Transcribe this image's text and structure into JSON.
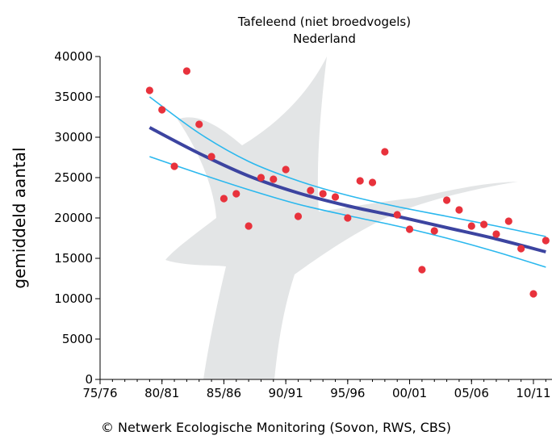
{
  "chart_data": {
    "type": "scatter",
    "title": "Tafeleend (niet broedvogels)",
    "subtitle": "Nederland",
    "ylabel": "gemiddeld aantal",
    "xlabel": "",
    "ylim": [
      0,
      40000
    ],
    "yticks": [
      0,
      5000,
      10000,
      15000,
      20000,
      25000,
      30000,
      35000,
      40000
    ],
    "xlim": [
      1975,
      2011.5
    ],
    "xticks": [
      {
        "value": 1975,
        "label": "75/76"
      },
      {
        "value": 1980,
        "label": "80/81"
      },
      {
        "value": 1985,
        "label": "85/86"
      },
      {
        "value": 1990,
        "label": "90/91"
      },
      {
        "value": 1995,
        "label": "95/96"
      },
      {
        "value": 2000,
        "label": "00/01"
      },
      {
        "value": 2005,
        "label": "05/06"
      },
      {
        "value": 2010,
        "label": "10/11"
      }
    ],
    "points": [
      {
        "x": 1979,
        "y": 35800
      },
      {
        "x": 1980,
        "y": 33400
      },
      {
        "x": 1981,
        "y": 26400
      },
      {
        "x": 1982,
        "y": 38200
      },
      {
        "x": 1983,
        "y": 31600
      },
      {
        "x": 1984,
        "y": 27600
      },
      {
        "x": 1985,
        "y": 22400
      },
      {
        "x": 1986,
        "y": 23000
      },
      {
        "x": 1987,
        "y": 19000
      },
      {
        "x": 1988,
        "y": 25000
      },
      {
        "x": 1989,
        "y": 24800
      },
      {
        "x": 1990,
        "y": 26000
      },
      {
        "x": 1991,
        "y": 20200
      },
      {
        "x": 1992,
        "y": 23400
      },
      {
        "x": 1993,
        "y": 23000
      },
      {
        "x": 1994,
        "y": 22600
      },
      {
        "x": 1995,
        "y": 20000
      },
      {
        "x": 1996,
        "y": 24600
      },
      {
        "x": 1997,
        "y": 24400
      },
      {
        "x": 1998,
        "y": 28200
      },
      {
        "x": 1999,
        "y": 20400
      },
      {
        "x": 2000,
        "y": 18600
      },
      {
        "x": 2001,
        "y": 13600
      },
      {
        "x": 2002,
        "y": 18400
      },
      {
        "x": 2003,
        "y": 22200
      },
      {
        "x": 2004,
        "y": 21000
      },
      {
        "x": 2005,
        "y": 19000
      },
      {
        "x": 2006,
        "y": 19200
      },
      {
        "x": 2007,
        "y": 18000
      },
      {
        "x": 2008,
        "y": 19600
      },
      {
        "x": 2009,
        "y": 16200
      },
      {
        "x": 2010,
        "y": 10600
      },
      {
        "x": 2011,
        "y": 17200
      }
    ],
    "trend": {
      "x": [
        1979,
        1983,
        1987,
        1991,
        1995,
        1999,
        2003,
        2007,
        2011
      ],
      "y": [
        31200,
        28000,
        25200,
        23100,
        21500,
        20200,
        18800,
        17400,
        15800
      ],
      "upper": [
        35000,
        30500,
        27000,
        24600,
        22800,
        21400,
        20200,
        19000,
        17700
      ],
      "lower": [
        27600,
        25500,
        23500,
        21700,
        20300,
        19000,
        17500,
        15800,
        13900
      ]
    },
    "grid": false,
    "legend": "none",
    "colors": {
      "points": "#e8323c",
      "trend": "#3c44a0",
      "band": "#2bb8ee",
      "watermark": "#e3e5e6",
      "axis": "#000000"
    }
  },
  "footer": {
    "copyright_icon": "copyright-icon",
    "credit": "© Netwerk Ecologische Monitoring (Sovon, RWS, CBS)"
  }
}
